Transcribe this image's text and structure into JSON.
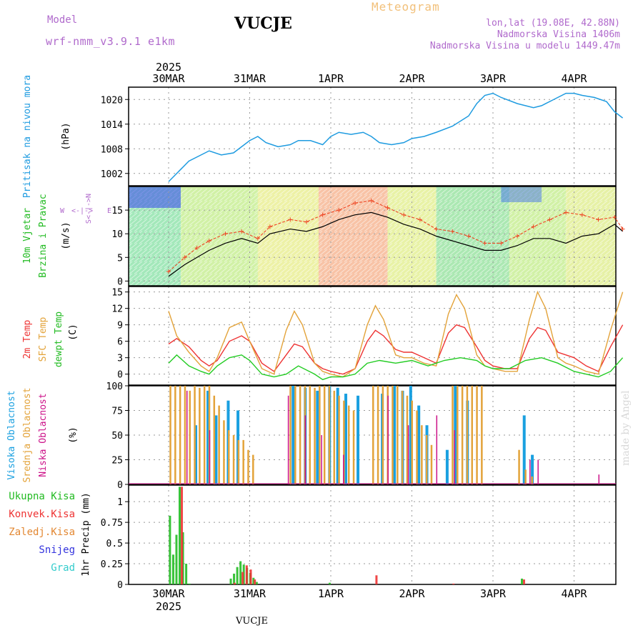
{
  "header": {
    "model_label": "Model",
    "model_name": "wrf-nmm_v3.9.1  e1km",
    "station": "VUCJE",
    "title": "Meteogram",
    "lonlat": "lon,lat (19.08E, 42.88N)",
    "elevation": "Nadmorska Visina 1406m",
    "model_elevation": "Nadmorska Visina u modelu 1449.47m",
    "footer_station": "VUCJE",
    "watermark": "made by Angel"
  },
  "time_axis": {
    "year": "2025",
    "date_labels": [
      "30MAR",
      "31MAR",
      "1APR",
      "2APR",
      "3APR",
      "4APR"
    ]
  },
  "colors": {
    "pressure": "#1e9be0",
    "wind_speed": "#000000",
    "wind_gust": "#ee4422",
    "temp2m": "#ee3333",
    "sfc_temp": "#e3a33a",
    "dewpoint": "#22cc22",
    "cloud_high": "#1aa0e0",
    "cloud_mid": "#e3a33a",
    "cloud_low": "#cc1188",
    "precip_total": "#22bb22",
    "precip_conv": "#ee3333",
    "precip_grid": "#e38833",
    "snow": "#3333dd",
    "graupel": "#33cccc"
  },
  "chart_data": [
    {
      "type": "line",
      "panel": "pressure",
      "ylabel": [
        "Pritisak na nivou mora",
        "(hPa)"
      ],
      "yticks": [
        1002,
        1008,
        1014,
        1020
      ],
      "ylim": [
        999,
        1023
      ],
      "x_days": [
        0,
        0.1,
        0.25,
        0.4,
        0.5,
        0.65,
        0.8,
        1.0,
        1.1,
        1.2,
        1.35,
        1.5,
        1.6,
        1.75,
        1.9,
        2.0,
        2.1,
        2.25,
        2.4,
        2.5,
        2.6,
        2.75,
        2.9,
        3.0,
        3.15,
        3.3,
        3.5,
        3.7,
        3.8,
        3.9,
        4.0,
        4.1,
        4.3,
        4.5,
        4.6,
        4.75,
        4.9,
        5.0,
        5.1,
        5.25,
        5.4,
        5.5,
        5.6
      ],
      "values": [
        1000,
        1002,
        1005,
        1006.5,
        1007.5,
        1006.5,
        1007,
        1010,
        1011,
        1009.5,
        1008.5,
        1009,
        1010,
        1010,
        1009,
        1011,
        1012,
        1011.5,
        1012,
        1011,
        1009.5,
        1009,
        1009.5,
        1010.5,
        1011,
        1012,
        1013.5,
        1016,
        1019,
        1021,
        1021.5,
        1020.5,
        1019,
        1018,
        1018.5,
        1020,
        1021.5,
        1021.5,
        1021,
        1020.5,
        1019.5,
        1017,
        1015.5
      ],
      "grid": true
    },
    {
      "type": "line",
      "panel": "wind",
      "ylabel": [
        "10m Vjetar",
        "Brzina i Pravac",
        "(m/s)"
      ],
      "compass": [
        "W",
        "<-|->",
        "E",
        "S<-|->N"
      ],
      "yticks": [
        0,
        5,
        10,
        15
      ],
      "ylim": [
        -1,
        20
      ],
      "series": [
        {
          "role": "speed",
          "x_days": [
            0,
            0.2,
            0.35,
            0.5,
            0.7,
            0.9,
            1.1,
            1.25,
            1.5,
            1.7,
            1.9,
            2.1,
            2.3,
            2.5,
            2.7,
            2.9,
            3.1,
            3.3,
            3.5,
            3.7,
            3.9,
            4.1,
            4.3,
            4.5,
            4.7,
            4.9,
            5.1,
            5.3,
            5.5,
            5.6
          ],
          "values": [
            1,
            3.5,
            5,
            6.5,
            8,
            9,
            8,
            10,
            11,
            10.5,
            11.5,
            13,
            14,
            14.5,
            13.5,
            12,
            11,
            9.5,
            8.5,
            7.5,
            6.5,
            6.5,
            7.5,
            9,
            9,
            8,
            9.5,
            10,
            12,
            10.5
          ]
        },
        {
          "role": "gust",
          "x_days": [
            0,
            0.2,
            0.35,
            0.5,
            0.7,
            0.9,
            1.1,
            1.25,
            1.5,
            1.7,
            1.9,
            2.1,
            2.3,
            2.5,
            2.7,
            2.9,
            3.1,
            3.3,
            3.5,
            3.7,
            3.9,
            4.1,
            4.3,
            4.5,
            4.7,
            4.9,
            5.1,
            5.3,
            5.5,
            5.6
          ],
          "values": [
            2,
            5,
            7,
            8.5,
            10,
            10.5,
            9,
            11.5,
            13,
            12.5,
            14,
            15,
            16.5,
            17,
            15.5,
            14,
            13,
            11,
            10.5,
            9.5,
            8,
            8,
            9.5,
            11.5,
            13,
            14.5,
            14,
            13,
            13.5,
            11
          ]
        }
      ],
      "grid": true
    },
    {
      "type": "line",
      "panel": "temperature",
      "ylabel": [
        "2m Temp",
        "SFC Temp",
        "dewpt Temp",
        "(C)"
      ],
      "yticks": [
        0,
        3,
        6,
        9,
        12,
        15
      ],
      "ylim": [
        -2,
        16
      ],
      "series": [
        {
          "role": "temp2m",
          "x_days": [
            0,
            0.1,
            0.25,
            0.4,
            0.5,
            0.6,
            0.75,
            0.9,
            1.0,
            1.15,
            1.3,
            1.45,
            1.55,
            1.65,
            1.8,
            1.9,
            2.0,
            2.15,
            2.3,
            2.45,
            2.55,
            2.65,
            2.8,
            2.9,
            3.0,
            3.15,
            3.3,
            3.45,
            3.55,
            3.65,
            3.8,
            3.9,
            4.0,
            4.15,
            4.3,
            4.45,
            4.55,
            4.65,
            4.8,
            4.9,
            5.0,
            5.15,
            5.3,
            5.45,
            5.6
          ],
          "values": [
            5.5,
            6.5,
            5,
            2.5,
            1.5,
            2.5,
            6,
            7,
            6,
            2,
            0.5,
            3.5,
            5.5,
            5,
            2,
            1,
            0.5,
            0,
            1,
            6,
            8,
            7,
            4.5,
            4,
            4,
            3,
            2,
            7.5,
            9,
            8.5,
            5,
            2.5,
            1.5,
            1,
            1,
            6.5,
            8.5,
            8,
            4,
            3.5,
            3,
            1.5,
            0.5,
            5,
            9
          ]
        },
        {
          "role": "sfc_temp",
          "x_days": [
            0,
            0.1,
            0.25,
            0.4,
            0.5,
            0.6,
            0.75,
            0.9,
            1.0,
            1.15,
            1.3,
            1.45,
            1.55,
            1.65,
            1.8,
            1.9,
            2.0,
            2.15,
            2.3,
            2.45,
            2.55,
            2.65,
            2.8,
            2.9,
            3.0,
            3.15,
            3.3,
            3.45,
            3.55,
            3.65,
            3.8,
            3.9,
            4.0,
            4.15,
            4.3,
            4.45,
            4.55,
            4.65,
            4.8,
            4.9,
            5.0,
            5.15,
            5.3,
            5.45,
            5.6
          ],
          "values": [
            11.5,
            7,
            4,
            1.5,
            0.5,
            3,
            8.5,
            9.5,
            6,
            1,
            0,
            8,
            11.5,
            9,
            2,
            0.5,
            0,
            -0.5,
            1,
            9,
            12.5,
            10,
            3.5,
            3,
            3,
            2,
            1.5,
            11,
            14.5,
            12,
            3.5,
            1.5,
            1,
            0.5,
            0.5,
            10,
            15,
            12,
            3,
            2,
            1.5,
            0.5,
            0,
            8,
            15
          ]
        },
        {
          "role": "dewpoint",
          "x_days": [
            0,
            0.1,
            0.25,
            0.4,
            0.5,
            0.6,
            0.75,
            0.9,
            1.0,
            1.15,
            1.3,
            1.45,
            1.6,
            1.8,
            1.9,
            2.0,
            2.15,
            2.3,
            2.45,
            2.6,
            2.8,
            3.0,
            3.2,
            3.4,
            3.6,
            3.8,
            3.9,
            4.0,
            4.2,
            4.4,
            4.6,
            4.8,
            5.0,
            5.15,
            5.3,
            5.45,
            5.6
          ],
          "values": [
            2,
            3.5,
            1.5,
            0.5,
            0,
            1.5,
            3,
            3.5,
            2.5,
            0,
            -0.5,
            0,
            1.5,
            0,
            -1,
            -0.5,
            -0.5,
            0,
            2,
            2.5,
            2,
            2.5,
            1.5,
            2.5,
            3,
            2.5,
            1.5,
            1,
            1,
            2.5,
            3,
            2,
            0.5,
            0,
            -0.5,
            0.5,
            3
          ]
        }
      ],
      "grid": true
    },
    {
      "type": "bar",
      "panel": "cloud",
      "ylabel": [
        "Visoka Oblacnost",
        "Srednja Oblacnost",
        "Niska Oblacnost",
        "(%)"
      ],
      "yticks": [
        0,
        25,
        50,
        75,
        100
      ],
      "ylim": [
        0,
        100
      ],
      "series": [
        {
          "role": "high",
          "x_days": [
            0.3,
            0.45,
            0.55,
            0.7,
            0.82,
            1.5,
            1.65,
            1.8,
            1.95,
            2.05,
            2.15,
            2.3,
            2.6,
            2.75,
            2.85,
            2.95,
            3.05,
            3.15,
            3.4,
            3.5,
            3.65,
            4.35,
            4.45
          ],
          "values": [
            60,
            95,
            70,
            85,
            75,
            100,
            98,
            95,
            100,
            98,
            92,
            90,
            92,
            100,
            95,
            100,
            80,
            60,
            35,
            100,
            85,
            70,
            30
          ]
        },
        {
          "role": "mid",
          "x_days": [
            0.02,
            0.08,
            0.14,
            0.2,
            0.26,
            0.32,
            0.38,
            0.44,
            0.5,
            0.56,
            0.62,
            0.68,
            0.74,
            0.8,
            0.86,
            0.92,
            0.98,
            1.04,
            1.5,
            1.56,
            1.62,
            1.68,
            1.74,
            1.8,
            1.86,
            1.92,
            1.98,
            2.04,
            2.1,
            2.16,
            2.22,
            2.28,
            2.52,
            2.58,
            2.64,
            2.7,
            2.76,
            2.82,
            2.88,
            2.94,
            3.0,
            3.06,
            3.12,
            3.18,
            3.24,
            3.5,
            3.56,
            3.62,
            3.68,
            3.74,
            3.8,
            3.86,
            4.32,
            4.4,
            4.48
          ],
          "values": [
            100,
            100,
            100,
            100,
            95,
            100,
            98,
            100,
            100,
            90,
            80,
            65,
            55,
            50,
            45,
            45,
            35,
            30,
            100,
            100,
            100,
            100,
            100,
            98,
            100,
            100,
            100,
            95,
            90,
            85,
            80,
            75,
            100,
            100,
            100,
            100,
            100,
            100,
            95,
            90,
            85,
            75,
            60,
            50,
            40,
            100,
            100,
            100,
            100,
            100,
            100,
            100,
            35,
            15,
            8
          ]
        },
        {
          "role": "low",
          "x_days": [
            0.22,
            0.5,
            1.47,
            1.68,
            1.88,
            2.15,
            2.7,
            2.95,
            3.3,
            3.52,
            4.45,
            4.55,
            5.3
          ],
          "values": [
            95,
            55,
            90,
            70,
            50,
            30,
            90,
            60,
            70,
            55,
            25,
            25,
            10
          ]
        }
      ],
      "grid": true
    },
    {
      "type": "bar",
      "panel": "precipitation",
      "ylabel": "1hr Precip (mm)",
      "legend": [
        "Ukupna  Kisa",
        "Konvek.Kisa",
        "Zaledj.Kisa",
        "Snijeg",
        "Grad"
      ],
      "yticks": [
        0,
        0.25,
        0.5,
        0.75,
        1
      ],
      "yticklabels": [
        "0",
        "0.25",
        "0.5",
        "0.75",
        "1"
      ],
      "ylim": [
        0,
        1.2
      ],
      "series": [
        {
          "role": "total",
          "x_days": [
            0.03,
            0.07,
            0.11,
            0.15,
            0.19,
            0.23,
            0.27,
            0.78,
            0.82,
            0.86,
            0.9,
            0.94,
            0.98,
            1.02,
            1.06,
            1.1,
            2.0,
            4.37
          ],
          "values": [
            0.83,
            0.36,
            0.6,
            1.18,
            0.63,
            0.25,
            0.01,
            0.07,
            0.13,
            0.21,
            0.28,
            0.24,
            0.2,
            0.14,
            0.08,
            0.03,
            0.02,
            0.07
          ]
        },
        {
          "role": "convective",
          "x_days": [
            0.15,
            0.8,
            0.9,
            0.95,
            1.0,
            1.05,
            2.55,
            3.5,
            4.37
          ],
          "values": [
            1.18,
            0.02,
            0.15,
            0.23,
            0.18,
            0.06,
            0.11,
            0.01,
            0.06
          ]
        }
      ],
      "grid": true
    }
  ]
}
